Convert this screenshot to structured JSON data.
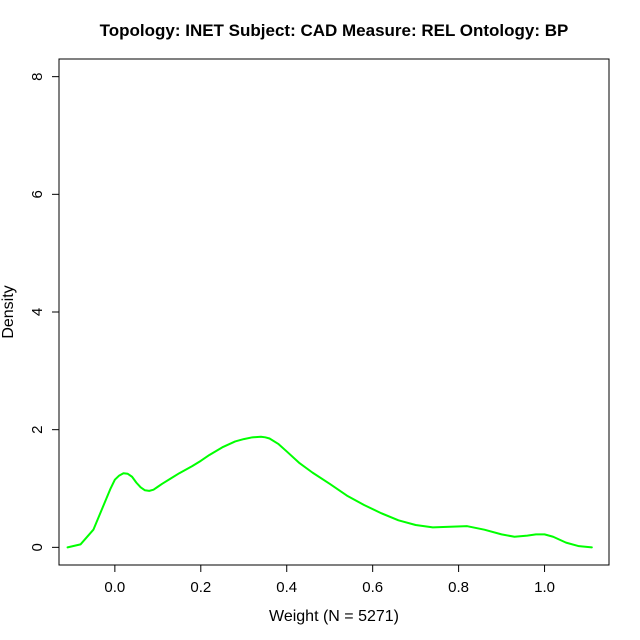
{
  "chart_data": {
    "type": "line",
    "title": "Topology: INET   Subject: CAD   Measure: REL   Ontology: BP",
    "xlabel": "Weight (N = 5271)",
    "ylabel": "Density",
    "xlim": [
      -0.13,
      1.15
    ],
    "ylim": [
      -0.3,
      8.3
    ],
    "xticks": [
      0.0,
      0.2,
      0.4,
      0.6,
      0.8,
      1.0
    ],
    "xtick_labels": [
      "0.0",
      "0.2",
      "0.4",
      "0.6",
      "0.8",
      "1.0"
    ],
    "yticks": [
      0,
      2,
      4,
      6,
      8
    ],
    "ytick_labels": [
      "0",
      "2",
      "4",
      "6",
      "8"
    ],
    "grid": false,
    "series": [
      {
        "color": "#00ff00",
        "x": [
          -0.11,
          -0.08,
          -0.05,
          -0.03,
          -0.01,
          0.0,
          0.01,
          0.02,
          0.03,
          0.04,
          0.05,
          0.06,
          0.07,
          0.08,
          0.09,
          0.1,
          0.11,
          0.13,
          0.15,
          0.18,
          0.2,
          0.22,
          0.25,
          0.28,
          0.3,
          0.32,
          0.34,
          0.35,
          0.36,
          0.38,
          0.4,
          0.43,
          0.46,
          0.5,
          0.54,
          0.58,
          0.62,
          0.66,
          0.7,
          0.74,
          0.78,
          0.82,
          0.86,
          0.9,
          0.93,
          0.96,
          0.98,
          1.0,
          1.02,
          1.05,
          1.08,
          1.11
        ],
        "y": [
          0.0,
          0.05,
          0.3,
          0.65,
          1.0,
          1.15,
          1.22,
          1.26,
          1.25,
          1.2,
          1.1,
          1.02,
          0.97,
          0.96,
          0.98,
          1.03,
          1.08,
          1.17,
          1.26,
          1.38,
          1.47,
          1.57,
          1.7,
          1.8,
          1.84,
          1.87,
          1.88,
          1.87,
          1.85,
          1.76,
          1.63,
          1.43,
          1.27,
          1.08,
          0.88,
          0.72,
          0.58,
          0.46,
          0.38,
          0.34,
          0.35,
          0.36,
          0.3,
          0.22,
          0.18,
          0.2,
          0.22,
          0.22,
          0.18,
          0.08,
          0.02,
          0.0
        ]
      }
    ]
  }
}
